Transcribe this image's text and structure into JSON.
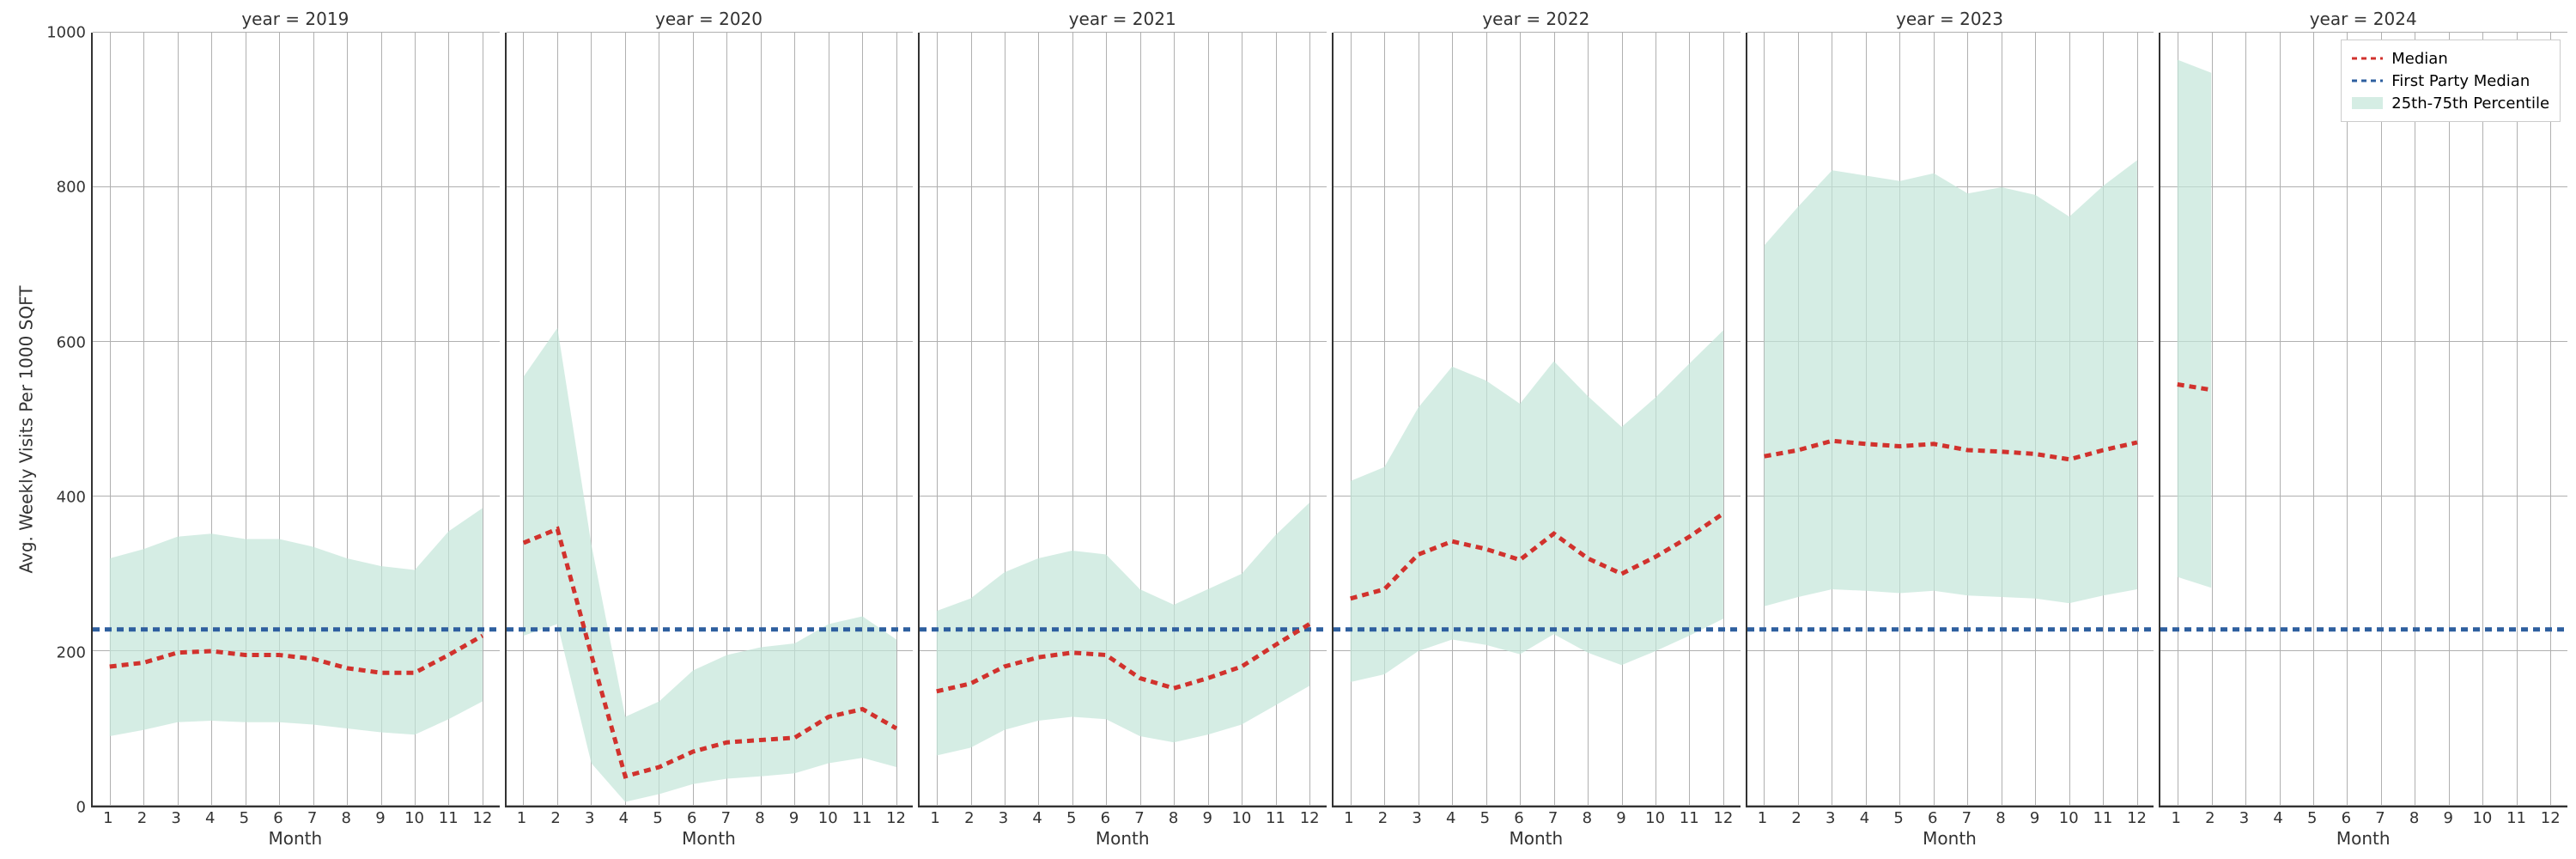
{
  "ylabel": "Avg. Weekly Visits Per 1000 SQFT",
  "xlabel": "Month",
  "ylim": [
    0,
    1000
  ],
  "yticks": [
    0,
    200,
    400,
    600,
    800,
    1000
  ],
  "xlim": [
    0.5,
    12.5
  ],
  "xticks": [
    1,
    2,
    3,
    4,
    5,
    6,
    7,
    8,
    9,
    10,
    11,
    12
  ],
  "grid_color": "#b0b0b0",
  "median_color": "#d1322d",
  "first_party_color": "#2e5f9f",
  "band_color": "#c3e6d9",
  "band_opacity": 0.7,
  "line_width": 2.5,
  "dash": "8,6",
  "first_party_value": 228,
  "legend": {
    "median": "Median",
    "first_party": "First Party Median",
    "band": "25th-75th Percentile"
  },
  "panels": [
    {
      "title": "year = 2019",
      "show_yticks": true,
      "months": [
        1,
        2,
        3,
        4,
        5,
        6,
        7,
        8,
        9,
        10,
        11,
        12
      ],
      "median": [
        180,
        185,
        198,
        200,
        195,
        195,
        190,
        178,
        172,
        172,
        195,
        220
      ],
      "p25": [
        90,
        98,
        108,
        110,
        108,
        108,
        105,
        100,
        95,
        92,
        112,
        135
      ],
      "p75": [
        320,
        332,
        348,
        352,
        345,
        345,
        335,
        320,
        310,
        305,
        355,
        385
      ]
    },
    {
      "title": "year = 2020",
      "show_yticks": false,
      "months": [
        1,
        2,
        3,
        4,
        5,
        6,
        7,
        8,
        9,
        10,
        11,
        12
      ],
      "median": [
        340,
        358,
        195,
        38,
        50,
        70,
        82,
        85,
        88,
        115,
        125,
        100
      ],
      "p25": [
        220,
        235,
        55,
        5,
        15,
        28,
        35,
        38,
        42,
        55,
        62,
        50
      ],
      "p75": [
        555,
        618,
        338,
        115,
        135,
        175,
        195,
        205,
        210,
        235,
        245,
        215
      ]
    },
    {
      "title": "year = 2021",
      "show_yticks": false,
      "months": [
        1,
        2,
        3,
        4,
        5,
        6,
        7,
        8,
        9,
        10,
        11,
        12
      ],
      "median": [
        148,
        158,
        180,
        192,
        198,
        195,
        165,
        152,
        165,
        180,
        208,
        235
      ],
      "p25": [
        65,
        75,
        98,
        110,
        115,
        112,
        90,
        82,
        92,
        105,
        130,
        155
      ],
      "p75": [
        252,
        268,
        302,
        320,
        330,
        325,
        280,
        260,
        280,
        300,
        350,
        392
      ]
    },
    {
      "title": "year = 2022",
      "show_yticks": false,
      "months": [
        1,
        2,
        3,
        4,
        5,
        6,
        7,
        8,
        9,
        10,
        11,
        12
      ],
      "median": [
        268,
        280,
        325,
        342,
        332,
        318,
        352,
        320,
        300,
        322,
        348,
        378
      ],
      "p25": [
        160,
        170,
        200,
        215,
        208,
        196,
        222,
        198,
        182,
        200,
        220,
        242
      ],
      "p75": [
        420,
        438,
        515,
        568,
        550,
        520,
        575,
        530,
        490,
        528,
        572,
        615
      ]
    },
    {
      "title": "year = 2023",
      "show_yticks": false,
      "months": [
        1,
        2,
        3,
        4,
        5,
        6,
        7,
        8,
        9,
        10,
        11,
        12
      ],
      "median": [
        452,
        460,
        472,
        468,
        465,
        468,
        460,
        458,
        455,
        448,
        460,
        470
      ],
      "p25": [
        258,
        270,
        280,
        278,
        275,
        278,
        272,
        270,
        268,
        262,
        272,
        280
      ],
      "p75": [
        725,
        775,
        822,
        815,
        808,
        818,
        792,
        800,
        790,
        762,
        802,
        835
      ]
    },
    {
      "title": "year = 2024",
      "show_yticks": false,
      "legend": true,
      "months": [
        1,
        2
      ],
      "median": [
        545,
        538
      ],
      "p25": [
        296,
        282
      ],
      "p75": [
        965,
        948
      ]
    }
  ]
}
